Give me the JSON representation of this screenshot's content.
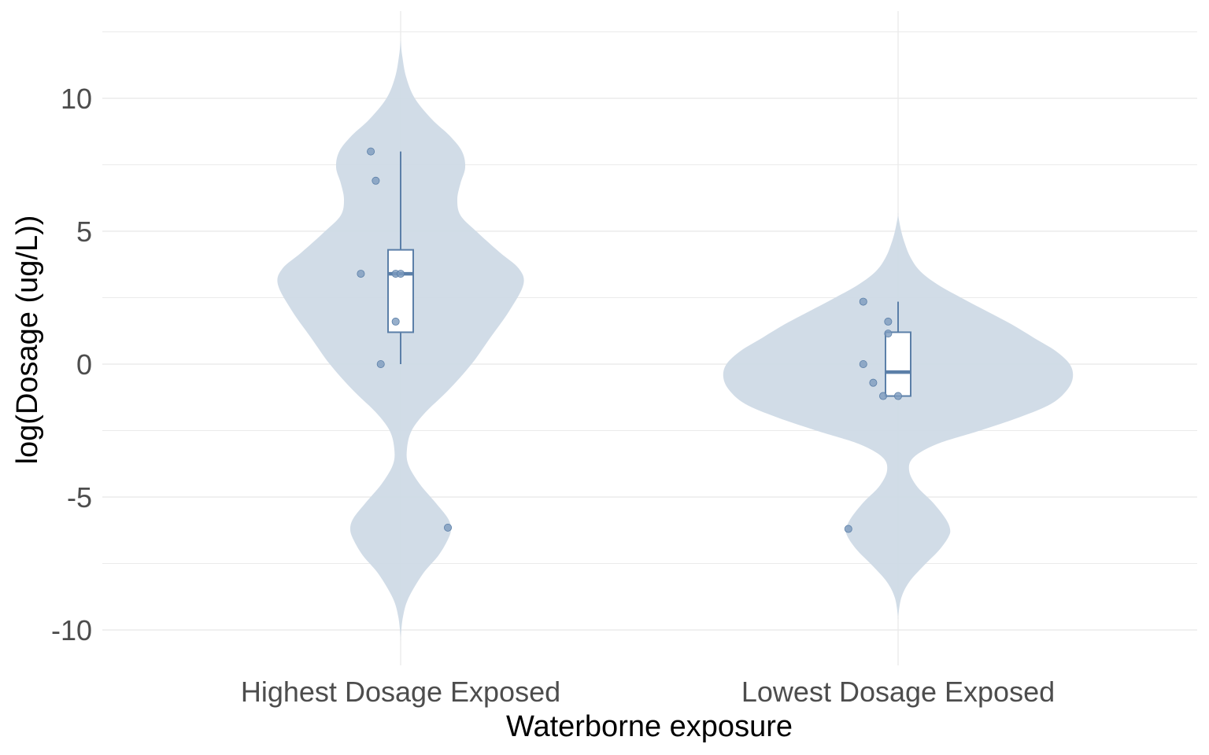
{
  "chart_data": {
    "type": "violin",
    "title": "",
    "xlabel": "Waterborne exposure",
    "ylabel": "log(Dosage (ug/L))",
    "ylim": [
      -11,
      12.2
    ],
    "y_ticks": [
      10,
      5,
      0,
      -5,
      -10
    ],
    "y_tick_labels": [
      "10",
      "5",
      "0",
      "-5",
      "-10"
    ],
    "grid": true,
    "categories": [
      "Highest Dosage Exposed",
      "Lowest Dosage Exposed"
    ],
    "colors": {
      "violin": "#cfdae6",
      "accent": "#5b7fa8",
      "points": "#7d9bbe",
      "grid": "#ebebeb"
    },
    "groups": [
      {
        "category": "Highest Dosage Exposed",
        "points": [
          {
            "dx": -0.06,
            "y": 8.0
          },
          {
            "dx": -0.05,
            "y": 6.9
          },
          {
            "dx": -0.08,
            "y": 3.4
          },
          {
            "dx": -0.01,
            "y": 3.4
          },
          {
            "dx": 0.0,
            "y": 3.4
          },
          {
            "dx": -0.01,
            "y": 1.6
          },
          {
            "dx": -0.04,
            "y": 0.0
          },
          {
            "dx": 0.095,
            "y": -6.15
          }
        ],
        "box": {
          "whisker_low": 0.0,
          "q1": 1.2,
          "median": 3.4,
          "q3": 4.3,
          "whisker_high": 8.0
        },
        "density": [
          [
            -10.3,
            0.0
          ],
          [
            -9.5,
            0.015
          ],
          [
            -8.8,
            0.05
          ],
          [
            -7.9,
            0.14
          ],
          [
            -7.2,
            0.24
          ],
          [
            -6.6,
            0.3
          ],
          [
            -6.2,
            0.32
          ],
          [
            -5.8,
            0.3
          ],
          [
            -5.2,
            0.22
          ],
          [
            -4.5,
            0.12
          ],
          [
            -3.8,
            0.05
          ],
          [
            -3.2,
            0.04
          ],
          [
            -2.5,
            0.07
          ],
          [
            -1.8,
            0.16
          ],
          [
            -1.0,
            0.3
          ],
          [
            0.0,
            0.45
          ],
          [
            1.0,
            0.57
          ],
          [
            2.0,
            0.69
          ],
          [
            3.0,
            0.78
          ],
          [
            3.6,
            0.75
          ],
          [
            4.2,
            0.63
          ],
          [
            5.0,
            0.48
          ],
          [
            5.6,
            0.38
          ],
          [
            6.2,
            0.36
          ],
          [
            6.8,
            0.38
          ],
          [
            7.4,
            0.41
          ],
          [
            8.0,
            0.39
          ],
          [
            8.6,
            0.31
          ],
          [
            9.2,
            0.2
          ],
          [
            10.0,
            0.09
          ],
          [
            10.8,
            0.035
          ],
          [
            11.6,
            0.01
          ],
          [
            12.2,
            0.0
          ]
        ]
      },
      {
        "category": "Lowest Dosage Exposed",
        "points": [
          {
            "dx": -0.07,
            "y": 2.35
          },
          {
            "dx": -0.02,
            "y": 1.6
          },
          {
            "dx": -0.02,
            "y": 1.15
          },
          {
            "dx": -0.07,
            "y": 0.0
          },
          {
            "dx": -0.05,
            "y": -0.7
          },
          {
            "dx": -0.03,
            "y": -1.2
          },
          {
            "dx": 0.0,
            "y": -1.2
          },
          {
            "dx": -0.1,
            "y": -6.2
          }
        ],
        "box": {
          "whisker_low": -1.2,
          "q1": -1.2,
          "median": -0.3,
          "q3": 1.2,
          "whisker_high": 2.35
        },
        "density": [
          [
            -9.5,
            0.0
          ],
          [
            -8.8,
            0.02
          ],
          [
            -8.2,
            0.07
          ],
          [
            -7.6,
            0.16
          ],
          [
            -7.0,
            0.26
          ],
          [
            -6.5,
            0.32
          ],
          [
            -6.2,
            0.33
          ],
          [
            -5.8,
            0.3
          ],
          [
            -5.2,
            0.22
          ],
          [
            -4.6,
            0.12
          ],
          [
            -4.0,
            0.07
          ],
          [
            -3.5,
            0.1
          ],
          [
            -3.0,
            0.25
          ],
          [
            -2.5,
            0.52
          ],
          [
            -2.0,
            0.77
          ],
          [
            -1.5,
            0.97
          ],
          [
            -1.0,
            1.07
          ],
          [
            -0.5,
            1.11
          ],
          [
            0.0,
            1.09
          ],
          [
            0.5,
            1.0
          ],
          [
            1.0,
            0.86
          ],
          [
            1.5,
            0.72
          ],
          [
            2.0,
            0.56
          ],
          [
            2.5,
            0.4
          ],
          [
            3.0,
            0.25
          ],
          [
            3.5,
            0.14
          ],
          [
            4.0,
            0.08
          ],
          [
            4.5,
            0.045
          ],
          [
            5.0,
            0.02
          ],
          [
            5.6,
            0.0
          ]
        ]
      }
    ]
  }
}
